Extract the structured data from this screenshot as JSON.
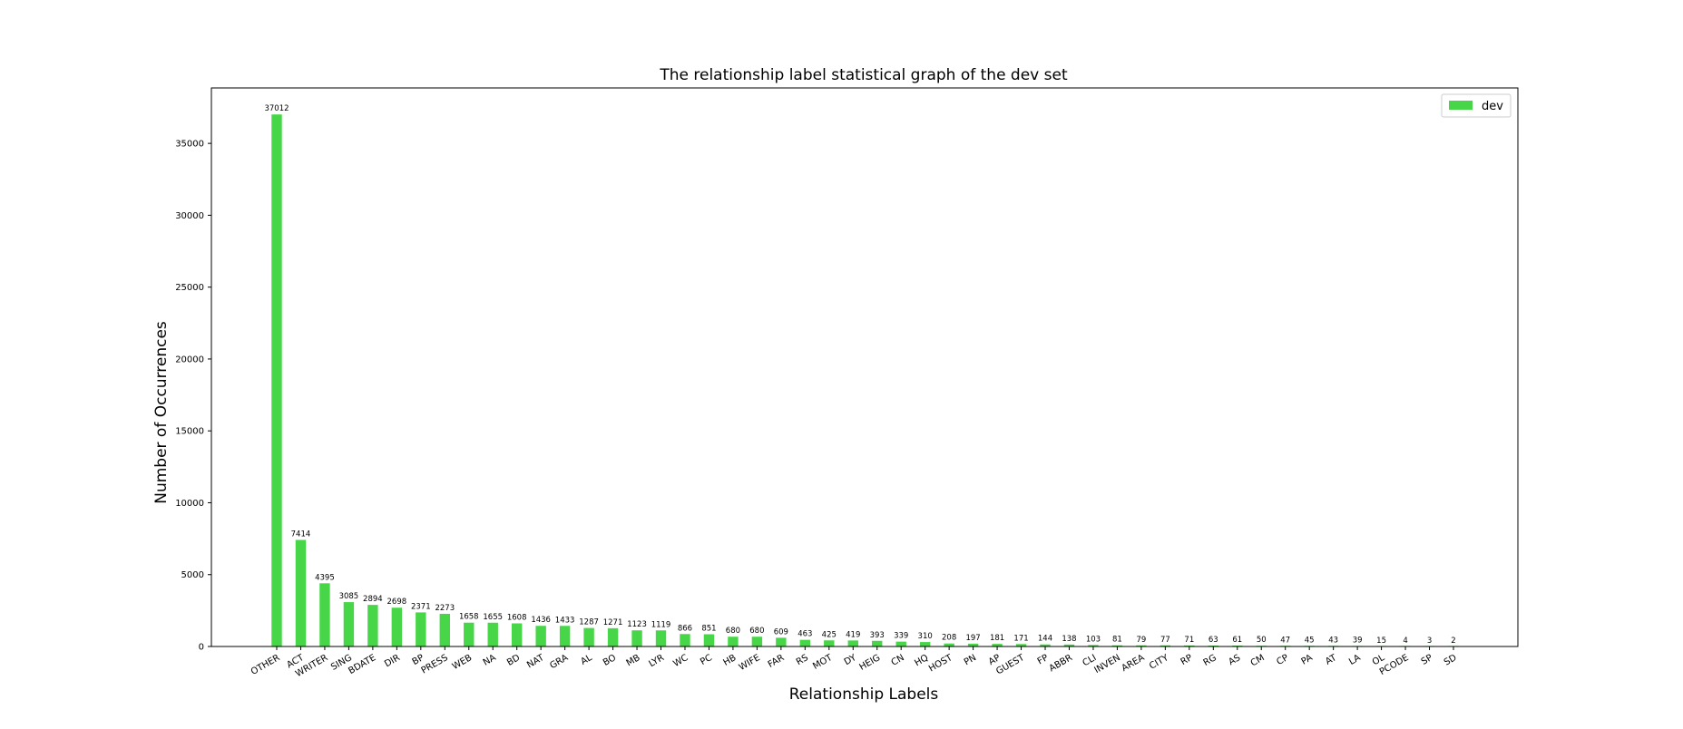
{
  "chart_data": {
    "type": "bar",
    "title": "The relationship label statistical graph of the dev set",
    "xlabel": "Relationship Labels",
    "ylabel": "Number of Occurrences",
    "ylim": [
      0,
      38856
    ],
    "yticks": [
      0,
      5000,
      10000,
      15000,
      20000,
      25000,
      30000,
      35000
    ],
    "grid": false,
    "legend_position": "top-right",
    "categories": [
      "OTHER",
      "ACT",
      "WRITER",
      "SING",
      "BDATE",
      "DIR",
      "BP",
      "PRESS",
      "WEB",
      "NA",
      "BD",
      "NAT",
      "GRA",
      "AL",
      "BO",
      "MB",
      "LYR",
      "WC",
      "PC",
      "HB",
      "WIFE",
      "FAR",
      "RS",
      "MOT",
      "DY",
      "HEIG",
      "CN",
      "HQ",
      "HOST",
      "PN",
      "AP",
      "GUEST",
      "FP",
      "ABBR",
      "CLI",
      "INVEN",
      "AREA",
      "CITY",
      "RP",
      "RG",
      "AS",
      "CM",
      "CP",
      "PA",
      "AT",
      "LA",
      "OL",
      "PCODE",
      "SP",
      "SD"
    ],
    "series": [
      {
        "name": "dev",
        "color": "#47d647",
        "values": [
          37012,
          7414,
          4395,
          3085,
          2894,
          2698,
          2371,
          2273,
          1658,
          1655,
          1608,
          1436,
          1433,
          1287,
          1271,
          1123,
          1119,
          866,
          851,
          680,
          680,
          609,
          463,
          425,
          419,
          393,
          339,
          310,
          208,
          197,
          181,
          171,
          144,
          138,
          103,
          81,
          79,
          77,
          71,
          63,
          61,
          50,
          47,
          45,
          43,
          39,
          15,
          4,
          3,
          2
        ]
      }
    ]
  }
}
